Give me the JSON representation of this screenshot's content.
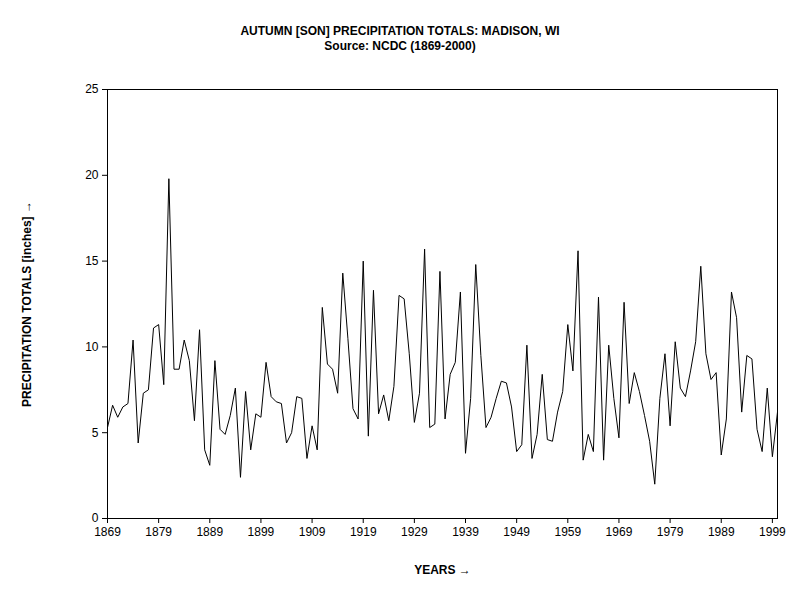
{
  "chart_data": {
    "type": "line",
    "title": "AUTUMN [SON] PRECIPITATION TOTALS: MADISON, WI",
    "subtitle": "Source: NCDC (1869-2000)",
    "x_label": "YEARS",
    "y_label": "PRECIPITATION TOTALS [inches]",
    "x": [
      1869,
      1870,
      1871,
      1872,
      1873,
      1874,
      1875,
      1876,
      1877,
      1878,
      1879,
      1880,
      1881,
      1882,
      1883,
      1884,
      1885,
      1886,
      1887,
      1888,
      1889,
      1890,
      1891,
      1892,
      1893,
      1894,
      1895,
      1896,
      1897,
      1898,
      1899,
      1900,
      1901,
      1902,
      1903,
      1904,
      1905,
      1906,
      1907,
      1908,
      1909,
      1910,
      1911,
      1912,
      1913,
      1914,
      1915,
      1916,
      1917,
      1918,
      1919,
      1920,
      1921,
      1922,
      1923,
      1924,
      1925,
      1926,
      1927,
      1928,
      1929,
      1930,
      1931,
      1932,
      1933,
      1934,
      1935,
      1936,
      1937,
      1938,
      1939,
      1940,
      1941,
      1942,
      1943,
      1944,
      1945,
      1946,
      1947,
      1948,
      1949,
      1950,
      1951,
      1952,
      1953,
      1954,
      1955,
      1956,
      1957,
      1958,
      1959,
      1960,
      1961,
      1962,
      1963,
      1964,
      1965,
      1966,
      1967,
      1968,
      1969,
      1970,
      1971,
      1972,
      1973,
      1974,
      1975,
      1976,
      1977,
      1978,
      1979,
      1980,
      1981,
      1982,
      1983,
      1984,
      1985,
      1986,
      1987,
      1988,
      1989,
      1990,
      1991,
      1992,
      1993,
      1994,
      1995,
      1996,
      1997,
      1998,
      1999,
      2000
    ],
    "values": [
      5.3,
      6.6,
      5.9,
      6.5,
      6.7,
      10.4,
      4.4,
      7.3,
      7.5,
      11.1,
      11.3,
      7.8,
      19.8,
      8.7,
      8.7,
      10.4,
      9.2,
      5.7,
      11.0,
      4.0,
      3.1,
      9.2,
      5.2,
      4.9,
      6.0,
      7.6,
      2.4,
      7.4,
      4.0,
      6.1,
      5.9,
      9.1,
      7.1,
      6.8,
      6.7,
      4.4,
      5.0,
      7.1,
      7.0,
      3.5,
      5.4,
      4.0,
      12.3,
      9.0,
      8.7,
      7.3,
      14.3,
      10.5,
      6.4,
      5.8,
      15.0,
      4.8,
      13.3,
      6.1,
      7.2,
      5.7,
      7.7,
      13.0,
      12.8,
      9.6,
      5.6,
      7.3,
      15.7,
      5.3,
      5.5,
      14.4,
      5.8,
      8.4,
      9.1,
      13.2,
      3.8,
      7.0,
      14.8,
      9.5,
      5.3,
      5.9,
      7.0,
      8.0,
      7.9,
      6.5,
      3.9,
      4.3,
      10.1,
      3.5,
      4.9,
      8.4,
      4.6,
      4.5,
      6.2,
      7.4,
      11.3,
      8.6,
      15.6,
      3.4,
      4.9,
      3.9,
      12.9,
      3.4,
      10.1,
      7.0,
      4.7,
      12.6,
      6.7,
      8.5,
      7.4,
      6.0,
      4.5,
      2.0,
      7.0,
      9.6,
      5.4,
      10.3,
      7.6,
      7.1,
      8.6,
      10.3,
      14.7,
      9.6,
      8.1,
      8.5,
      3.7,
      5.8,
      13.2,
      11.7,
      6.2,
      9.5,
      9.3,
      5.2,
      3.9,
      7.6,
      3.6,
      6.2
    ],
    "color": "#000000",
    "xlim": [
      1869,
      2000
    ],
    "xticks": [
      1869,
      1879,
      1889,
      1899,
      1909,
      1919,
      1929,
      1939,
      1949,
      1959,
      1969,
      1979,
      1989,
      1999
    ],
    "ylim": [
      0,
      25
    ],
    "yticks": [
      0,
      5,
      10,
      15,
      20,
      25
    ],
    "grid": false
  }
}
